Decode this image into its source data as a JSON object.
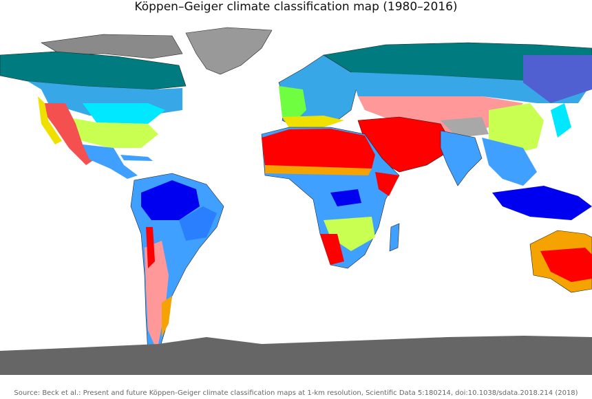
{
  "title": "Köppen–Geiger climate classification map (1980–2016)",
  "source": "Source: Beck et al.: Present and future Köppen-Geiger climate classification maps at 1-km resolution, Scientific Data 5:180214, doi:10.1038/sdata.2018.214 (2018)"
}
